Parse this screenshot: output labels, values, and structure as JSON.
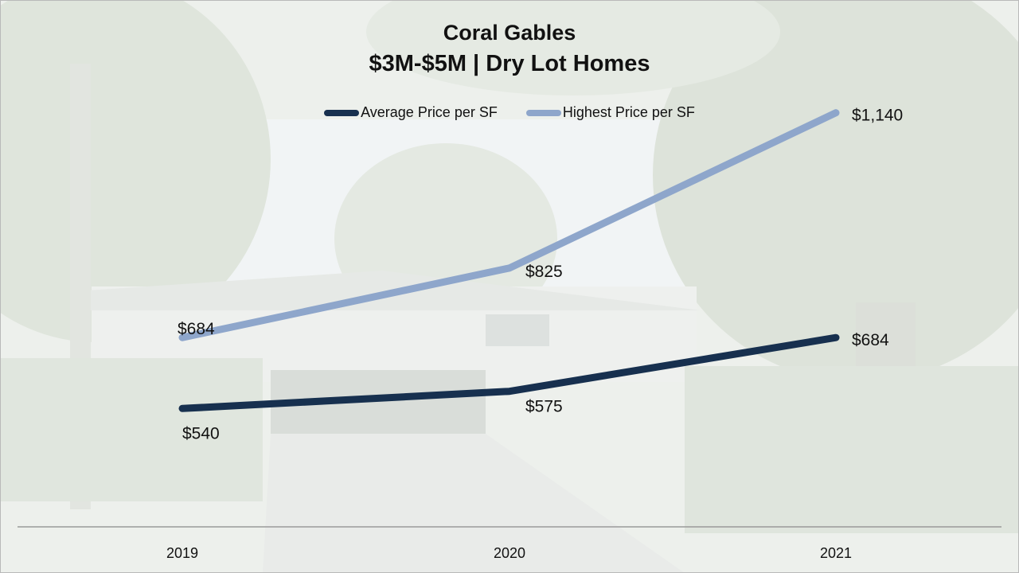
{
  "chart_data": {
    "type": "line",
    "title": "Coral Gables",
    "subtitle": "$3M-$5M | Dry Lot Homes",
    "categories": [
      "2019",
      "2020",
      "2021"
    ],
    "series": [
      {
        "name": "Average Price per SF",
        "values": [
          540,
          575,
          684
        ],
        "labels": [
          "$540",
          "$575",
          "$684"
        ],
        "color": "#17304f"
      },
      {
        "name": "Highest Price per SF",
        "values": [
          684,
          825,
          1140
        ],
        "labels": [
          "$684",
          "$825",
          "$1,140"
        ],
        "color": "#8ea6cb"
      }
    ],
    "ylim": [
      300,
      1280
    ],
    "grid": false,
    "legend": "top-center",
    "background": "faded photo of a house with trees"
  }
}
